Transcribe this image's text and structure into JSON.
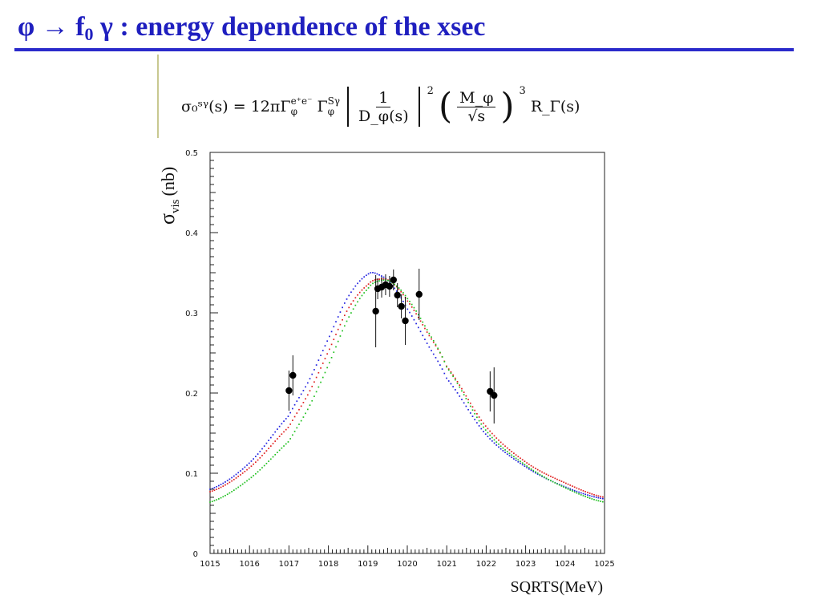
{
  "slide": {
    "title_main": "φ → f",
    "title_sub": "0",
    "title_rest": " γ  : energy dependence of the xsec"
  },
  "formula": {
    "lhs": "σ₀ˢᵞ(s) = 12πΓ",
    "gamma_ee_sup": "e⁺e⁻",
    "gamma_ee_sub": "φ",
    "mid": "Γ",
    "gamma_sg_sup": "Sγ",
    "gamma_sg_sub": "φ",
    "frac1_num": "1",
    "frac1_den": "D_φ(s)",
    "power2": "2",
    "frac2_num": "M_φ",
    "frac2_den": "√s",
    "power3": "3",
    "tail": "R_Γ(s)"
  },
  "chart_data": {
    "type": "scatter",
    "title": "",
    "xlabel": "SQRTS(MeV)",
    "ylabel_main": "σ",
    "ylabel_sub": "vis",
    "ylabel_unit": "(nb)",
    "xlim": [
      1015,
      1025
    ],
    "ylim": [
      0,
      0.5
    ],
    "xticks": [
      1015,
      1016,
      1017,
      1018,
      1019,
      1020,
      1021,
      1022,
      1023,
      1024,
      1025
    ],
    "yticks": [
      0,
      0.1,
      0.2,
      0.3,
      0.4,
      0.5
    ],
    "ytick_labels": [
      "0",
      "0.1",
      "0.2",
      "0.3",
      "0.4",
      "0.5"
    ],
    "grid": false,
    "points": [
      {
        "x": 1017.0,
        "y": 0.203,
        "err": 0.025
      },
      {
        "x": 1017.1,
        "y": 0.222,
        "err": 0.025
      },
      {
        "x": 1019.2,
        "y": 0.302,
        "err": 0.045
      },
      {
        "x": 1019.25,
        "y": 0.33,
        "err": 0.013
      },
      {
        "x": 1019.35,
        "y": 0.332,
        "err": 0.013
      },
      {
        "x": 1019.45,
        "y": 0.335,
        "err": 0.013
      },
      {
        "x": 1019.55,
        "y": 0.333,
        "err": 0.013
      },
      {
        "x": 1019.65,
        "y": 0.341,
        "err": 0.013
      },
      {
        "x": 1019.75,
        "y": 0.322,
        "err": 0.015
      },
      {
        "x": 1019.85,
        "y": 0.308,
        "err": 0.015
      },
      {
        "x": 1019.95,
        "y": 0.29,
        "err": 0.03
      },
      {
        "x": 1020.3,
        "y": 0.323,
        "err": 0.032
      },
      {
        "x": 1022.1,
        "y": 0.202,
        "err": 0.025
      },
      {
        "x": 1022.2,
        "y": 0.197,
        "err": 0.035
      }
    ],
    "series": [
      {
        "color": "#2020e0",
        "x": [
          1015,
          1016,
          1017,
          1017.5,
          1018,
          1018.5,
          1019,
          1019.3,
          1019.6,
          1020,
          1020.5,
          1021,
          1022,
          1023,
          1024,
          1025
        ],
        "y": [
          0.08,
          0.113,
          0.172,
          0.215,
          0.268,
          0.32,
          0.348,
          0.347,
          0.335,
          0.305,
          0.262,
          0.218,
          0.148,
          0.108,
          0.083,
          0.068
        ]
      },
      {
        "color": "#e02020",
        "x": [
          1015,
          1016,
          1017,
          1017.5,
          1018,
          1018.5,
          1019,
          1019.3,
          1019.6,
          1020,
          1020.5,
          1021,
          1022,
          1023,
          1024,
          1025
        ],
        "y": [
          0.077,
          0.107,
          0.158,
          0.2,
          0.252,
          0.305,
          0.335,
          0.342,
          0.338,
          0.315,
          0.276,
          0.233,
          0.158,
          0.114,
          0.088,
          0.07
        ]
      },
      {
        "color": "#20c020",
        "x": [
          1015,
          1016,
          1017,
          1017.5,
          1018,
          1018.5,
          1019,
          1019.3,
          1019.6,
          1020,
          1020.5,
          1021,
          1022,
          1023,
          1024,
          1025
        ],
        "y": [
          0.064,
          0.093,
          0.14,
          0.182,
          0.235,
          0.293,
          0.33,
          0.34,
          0.338,
          0.318,
          0.279,
          0.232,
          0.153,
          0.11,
          0.082,
          0.064
        ]
      }
    ]
  }
}
